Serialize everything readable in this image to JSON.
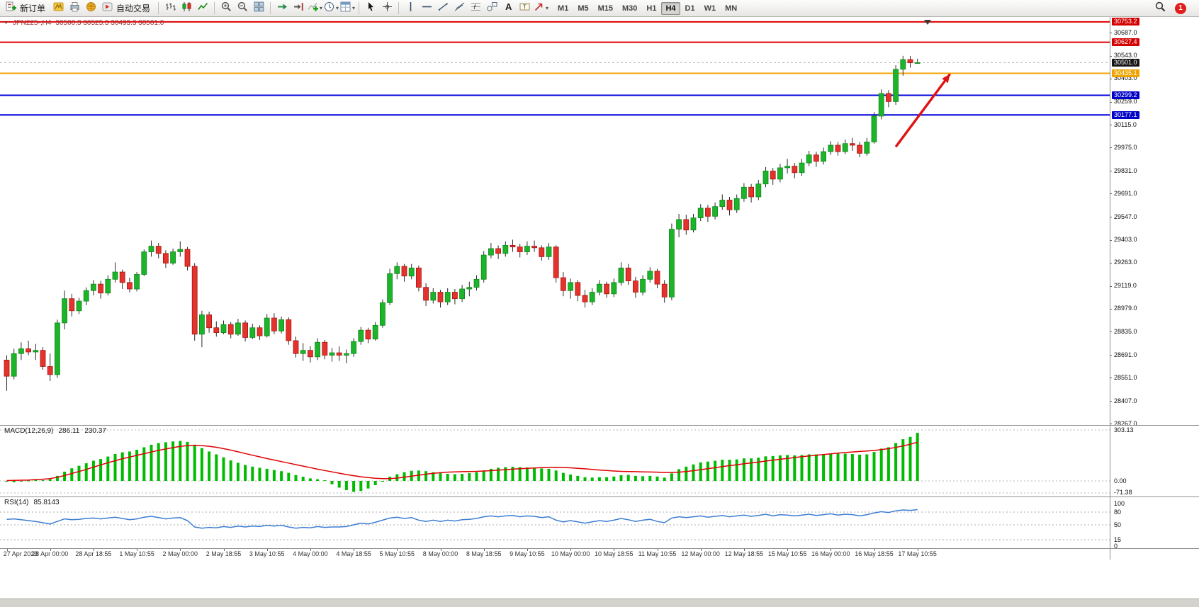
{
  "toolbar": {
    "items": [
      {
        "type": "button",
        "name": "new-order",
        "icon": "new-order-icon",
        "label": "新订单"
      },
      {
        "type": "icon",
        "name": "metaeditor",
        "icon": "metaeditor-icon"
      },
      {
        "type": "icon",
        "name": "print",
        "icon": "print-icon"
      },
      {
        "type": "icon",
        "name": "community",
        "icon": "community-icon"
      },
      {
        "type": "button",
        "name": "auto-trading",
        "icon": "autotrading-icon",
        "label": "自动交易"
      },
      {
        "type": "sep"
      },
      {
        "type": "icon",
        "name": "bar-chart",
        "icon": "bar-chart-icon"
      },
      {
        "type": "icon",
        "name": "candle-chart",
        "icon": "candle-chart-icon"
      },
      {
        "type": "icon",
        "name": "line-chart",
        "icon": "line-chart-icon"
      },
      {
        "type": "sep"
      },
      {
        "type": "icon",
        "name": "zoom-in",
        "icon": "zoom-in-icon"
      },
      {
        "type": "icon",
        "name": "zoom-out",
        "icon": "zoom-out-icon"
      },
      {
        "type": "icon",
        "name": "tile-windows",
        "icon": "tile-windows-icon"
      },
      {
        "type": "sep"
      },
      {
        "type": "icon",
        "name": "auto-scroll",
        "icon": "auto-scroll-icon"
      },
      {
        "type": "icon",
        "name": "chart-shift",
        "icon": "chart-shift-icon"
      },
      {
        "type": "icon",
        "name": "indicators",
        "icon": "indicators-icon",
        "dropdown": true
      },
      {
        "type": "icon",
        "name": "periods",
        "icon": "clock-icon",
        "dropdown": true
      },
      {
        "type": "icon",
        "name": "templates",
        "icon": "templates-icon",
        "dropdown": true
      },
      {
        "type": "sep"
      },
      {
        "type": "icon",
        "name": "cursor",
        "icon": "cursor-icon"
      },
      {
        "type": "icon",
        "name": "crosshair",
        "icon": "crosshair-icon"
      },
      {
        "type": "sep"
      },
      {
        "type": "icon",
        "name": "vertical-line",
        "icon": "vertical-line-icon"
      },
      {
        "type": "icon",
        "name": "horizontal-line",
        "icon": "horizontal-line-icon"
      },
      {
        "type": "icon",
        "name": "trend-line",
        "icon": "trend-line-icon"
      },
      {
        "type": "icon",
        "name": "channel",
        "icon": "channel-icon"
      },
      {
        "type": "icon",
        "name": "fibonacci",
        "icon": "fibonacci-icon"
      },
      {
        "type": "icon",
        "name": "shapes",
        "icon": "shapes-icon"
      },
      {
        "type": "icon",
        "name": "text",
        "icon": "text-icon"
      },
      {
        "type": "icon",
        "name": "text-label",
        "icon": "text-label-icon"
      },
      {
        "type": "icon",
        "name": "arrows",
        "icon": "arrow-icon",
        "dropdown": true
      }
    ],
    "timeframes": [
      "M1",
      "M5",
      "M15",
      "M30",
      "H1",
      "H4",
      "D1",
      "W1",
      "MN"
    ],
    "active_timeframe": "H4",
    "notification_count": "1"
  },
  "chart": {
    "symbol": "JPN225-,H4",
    "ohlc": "30500.3 30525.3 30493.3 30501.0",
    "bid": {
      "price": 30501.0,
      "label": "30501.0",
      "label_bg": "#161616"
    },
    "levels": [
      {
        "price": 30753.2,
        "label": "30753.2",
        "color": "#e00000",
        "label_bg": "#d40000"
      },
      {
        "price": 30627.4,
        "label": "30627.4",
        "color": "#e00000",
        "label_bg": "#d40000"
      },
      {
        "price": 30435.1,
        "label": "30435.1",
        "color": "#f2a200",
        "label_bg": "#eda400"
      },
      {
        "price": 30299.2,
        "label": "30299.2",
        "color": "#0000dc",
        "label_bg": "#0000c8"
      },
      {
        "price": 30177.1,
        "label": "30177.1",
        "color": "#0000dc",
        "label_bg": "#0000c8"
      }
    ],
    "price_axis": {
      "ticks": [
        "30687.0",
        "30543.0",
        "30403.0",
        "30259.0",
        "30115.0",
        "29975.0",
        "29831.0",
        "29691.0",
        "29547.0",
        "29403.0",
        "29263.0",
        "29119.0",
        "28979.0",
        "28835.0",
        "28691.0",
        "28551.0",
        "28407.0",
        "28267.0"
      ]
    },
    "colors": {
      "up": "#1db32a",
      "up_border": "#0d8a1b",
      "down": "#e4332c",
      "down_border": "#a81410",
      "wick": "#2b2b2b"
    },
    "annotations": [
      {
        "type": "arrow",
        "color": "#e01212",
        "from_index": 123,
        "from_price": 29980,
        "to_index": 130.5,
        "to_price": 30430
      }
    ],
    "time_labels": [
      "27 Apr 2023",
      "28 Apr 00:00",
      "28 Apr 18:55",
      "1 May 10:55",
      "2 May 00:00",
      "2 May 18:55",
      "3 May 10:55",
      "4 May 00:00",
      "4 May 18:55",
      "5 May 10:55",
      "8 May 00:00",
      "8 May 18:55",
      "9 May 10:55",
      "10 May 00:00",
      "10 May 18:55",
      "11 May 10:55",
      "12 May 00:00",
      "12 May 18:55",
      "15 May 10:55",
      "16 May 00:00",
      "16 May 18:55",
      "17 May 10:55"
    ],
    "candles": [
      [
        28660,
        28690,
        28470,
        28560
      ],
      [
        28560,
        28730,
        28540,
        28700
      ],
      [
        28700,
        28770,
        28660,
        28730
      ],
      [
        28730,
        28780,
        28690,
        28710
      ],
      [
        28710,
        28760,
        28660,
        28720
      ],
      [
        28720,
        28740,
        28600,
        28620
      ],
      [
        28620,
        28700,
        28530,
        28570
      ],
      [
        28570,
        28910,
        28550,
        28890
      ],
      [
        28890,
        29090,
        28850,
        29040
      ],
      [
        29040,
        29070,
        28930,
        28965
      ],
      [
        28965,
        29045,
        28945,
        29025
      ],
      [
        29025,
        29110,
        29000,
        29090
      ],
      [
        29090,
        29155,
        29060,
        29130
      ],
      [
        29130,
        29150,
        29040,
        29075
      ],
      [
        29075,
        29185,
        29060,
        29160
      ],
      [
        29160,
        29265,
        29140,
        29205
      ],
      [
        29205,
        29220,
        29100,
        29140
      ],
      [
        29140,
        29170,
        29080,
        29100
      ],
      [
        29100,
        29205,
        29085,
        29190
      ],
      [
        29190,
        29345,
        29180,
        29330
      ],
      [
        29330,
        29400,
        29300,
        29365
      ],
      [
        29365,
        29385,
        29290,
        29320
      ],
      [
        29320,
        29340,
        29230,
        29260
      ],
      [
        29260,
        29350,
        29250,
        29330
      ],
      [
        29330,
        29395,
        29300,
        29345
      ],
      [
        29345,
        29360,
        29215,
        29240
      ],
      [
        29240,
        29260,
        28780,
        28820
      ],
      [
        28820,
        28965,
        28740,
        28940
      ],
      [
        28940,
        28960,
        28830,
        28860
      ],
      [
        28860,
        28900,
        28805,
        28830
      ],
      [
        28830,
        28905,
        28820,
        28880
      ],
      [
        28880,
        28895,
        28795,
        28820
      ],
      [
        28820,
        28915,
        28810,
        28890
      ],
      [
        28890,
        28905,
        28775,
        28800
      ],
      [
        28800,
        28885,
        28790,
        28860
      ],
      [
        28860,
        28875,
        28785,
        28810
      ],
      [
        28810,
        28945,
        28800,
        28920
      ],
      [
        28920,
        28950,
        28820,
        28840
      ],
      [
        28840,
        28930,
        28825,
        28910
      ],
      [
        28910,
        28925,
        28755,
        28780
      ],
      [
        28780,
        28805,
        28675,
        28700
      ],
      [
        28700,
        28765,
        28655,
        28720
      ],
      [
        28720,
        28745,
        28645,
        28680
      ],
      [
        28680,
        28795,
        28660,
        28770
      ],
      [
        28770,
        28785,
        28665,
        28690
      ],
      [
        28690,
        28735,
        28650,
        28705
      ],
      [
        28705,
        28745,
        28655,
        28690
      ],
      [
        28690,
        28725,
        28640,
        28700
      ],
      [
        28700,
        28795,
        28680,
        28775
      ],
      [
        28775,
        28865,
        28755,
        28845
      ],
      [
        28845,
        28860,
        28765,
        28790
      ],
      [
        28790,
        28895,
        28780,
        28875
      ],
      [
        28875,
        29035,
        28860,
        29015
      ],
      [
        29015,
        29225,
        29000,
        29195
      ],
      [
        29195,
        29265,
        29160,
        29240
      ],
      [
        29240,
        29255,
        29145,
        29180
      ],
      [
        29180,
        29255,
        29160,
        29230
      ],
      [
        29230,
        29245,
        29085,
        29110
      ],
      [
        29110,
        29135,
        28995,
        29030
      ],
      [
        29030,
        29105,
        29010,
        29080
      ],
      [
        29080,
        29095,
        28985,
        29020
      ],
      [
        29020,
        29105,
        29000,
        29080
      ],
      [
        29080,
        29100,
        29005,
        29040
      ],
      [
        29040,
        29125,
        29020,
        29100
      ],
      [
        29100,
        29145,
        29055,
        29110
      ],
      [
        29110,
        29185,
        29090,
        29160
      ],
      [
        29160,
        29335,
        29140,
        29310
      ],
      [
        29310,
        29385,
        29290,
        29350
      ],
      [
        29350,
        29370,
        29285,
        29320
      ],
      [
        29320,
        29395,
        29300,
        29370
      ],
      [
        29370,
        29405,
        29330,
        29360
      ],
      [
        29360,
        29380,
        29295,
        29330
      ],
      [
        29330,
        29395,
        29310,
        29365
      ],
      [
        29365,
        29400,
        29330,
        29355
      ],
      [
        29355,
        29370,
        29275,
        29300
      ],
      [
        29300,
        29385,
        29280,
        29360
      ],
      [
        29360,
        29370,
        29140,
        29170
      ],
      [
        29170,
        29205,
        29055,
        29090
      ],
      [
        29090,
        29165,
        29040,
        29140
      ],
      [
        29140,
        29155,
        29025,
        29060
      ],
      [
        29060,
        29095,
        28985,
        29020
      ],
      [
        29020,
        29105,
        29000,
        29080
      ],
      [
        29080,
        29155,
        29060,
        29130
      ],
      [
        29130,
        29145,
        29045,
        29070
      ],
      [
        29070,
        29165,
        29050,
        29140
      ],
      [
        29140,
        29265,
        29120,
        29230
      ],
      [
        29230,
        29255,
        29125,
        29150
      ],
      [
        29150,
        29175,
        29045,
        29080
      ],
      [
        29080,
        29185,
        29060,
        29160
      ],
      [
        29160,
        29235,
        29140,
        29210
      ],
      [
        29210,
        29225,
        29105,
        29130
      ],
      [
        29130,
        29155,
        29015,
        29050
      ],
      [
        29050,
        29505,
        29030,
        29470
      ],
      [
        29470,
        29565,
        29420,
        29530
      ],
      [
        29530,
        29560,
        29435,
        29465
      ],
      [
        29465,
        29565,
        29450,
        29540
      ],
      [
        29540,
        29625,
        29520,
        29600
      ],
      [
        29600,
        29620,
        29515,
        29550
      ],
      [
        29550,
        29635,
        29530,
        29610
      ],
      [
        29610,
        29685,
        29590,
        29650
      ],
      [
        29650,
        29670,
        29555,
        29590
      ],
      [
        29590,
        29685,
        29570,
        29660
      ],
      [
        29660,
        29755,
        29640,
        29730
      ],
      [
        29730,
        29750,
        29635,
        29670
      ],
      [
        29670,
        29775,
        29650,
        29750
      ],
      [
        29750,
        29855,
        29730,
        29830
      ],
      [
        29830,
        29850,
        29745,
        29780
      ],
      [
        29780,
        29875,
        29760,
        29850
      ],
      [
        29850,
        29905,
        29815,
        29860
      ],
      [
        29860,
        29880,
        29785,
        29820
      ],
      [
        29820,
        29905,
        29800,
        29880
      ],
      [
        29880,
        29955,
        29860,
        29930
      ],
      [
        29930,
        29950,
        29855,
        29890
      ],
      [
        29890,
        29975,
        29870,
        29950
      ],
      [
        29950,
        30015,
        29930,
        29990
      ],
      [
        29990,
        30010,
        29925,
        29950
      ],
      [
        29950,
        30025,
        29935,
        30000
      ],
      [
        30000,
        30035,
        29955,
        29990
      ],
      [
        29990,
        30010,
        29915,
        29940
      ],
      [
        29940,
        30035,
        29925,
        30010
      ],
      [
        30010,
        30195,
        30000,
        30170
      ],
      [
        30170,
        30335,
        30150,
        30310
      ],
      [
        30310,
        30330,
        30225,
        30260
      ],
      [
        30260,
        30485,
        30240,
        30460
      ],
      [
        30460,
        30543,
        30420,
        30520
      ],
      [
        30520,
        30543,
        30470,
        30500
      ],
      [
        30500.3,
        30525.3,
        30493.3,
        30501.0
      ]
    ]
  },
  "macd": {
    "label": "MACD(12,26,9)",
    "value_main": "286.11",
    "value_signal": "230.37",
    "scale": [
      "303.13",
      "0.00",
      "-71.38"
    ],
    "colors": {
      "histogram": "#00bb00",
      "signal": "#e00000"
    },
    "histogram": [
      -5,
      -8,
      -4,
      2,
      6,
      4,
      10,
      30,
      55,
      75,
      90,
      105,
      120,
      130,
      145,
      160,
      170,
      175,
      185,
      200,
      215,
      225,
      230,
      235,
      238,
      232,
      215,
      195,
      175,
      158,
      140,
      122,
      108,
      95,
      85,
      78,
      72,
      65,
      58,
      48,
      35,
      25,
      15,
      10,
      4,
      -20,
      -40,
      -55,
      -65,
      -60,
      -45,
      -25,
      -5,
      25,
      40,
      52,
      60,
      62,
      58,
      52,
      46,
      42,
      40,
      42,
      46,
      52,
      62,
      72,
      78,
      82,
      84,
      82,
      80,
      78,
      74,
      72,
      62,
      48,
      38,
      30,
      22,
      20,
      22,
      22,
      26,
      34,
      36,
      30,
      28,
      30,
      26,
      20,
      45,
      70,
      85,
      98,
      110,
      115,
      120,
      126,
      126,
      128,
      134,
      134,
      138,
      146,
      148,
      152,
      154,
      152,
      154,
      158,
      158,
      160,
      164,
      162,
      162,
      160,
      156,
      158,
      172,
      192,
      200,
      225,
      248,
      262,
      286
    ],
    "signal": [
      2,
      3,
      4,
      5,
      8,
      10,
      14,
      22,
      32,
      44,
      56,
      68,
      82,
      95,
      108,
      120,
      132,
      142,
      152,
      162,
      172,
      182,
      190,
      198,
      205,
      210,
      212,
      210,
      206,
      200,
      192,
      183,
      173,
      163,
      153,
      143,
      133,
      124,
      115,
      106,
      97,
      88,
      79,
      70,
      62,
      54,
      46,
      38,
      31,
      25,
      20,
      16,
      14,
      14,
      17,
      22,
      28,
      34,
      40,
      45,
      49,
      52,
      54,
      55,
      56,
      57,
      59,
      61,
      64,
      67,
      70,
      73,
      75,
      77,
      79,
      80,
      81,
      80,
      78,
      75,
      72,
      68,
      65,
      62,
      59,
      57,
      56,
      55,
      54,
      53,
      52,
      50,
      50,
      52,
      56,
      61,
      67,
      73,
      79,
      85,
      91,
      96,
      102,
      107,
      112,
      118,
      123,
      129,
      134,
      139,
      144,
      148,
      153,
      157,
      161,
      165,
      169,
      172,
      175,
      178,
      181,
      186,
      192,
      199,
      208,
      218,
      230
    ]
  },
  "rsi": {
    "label": "RSI(14)",
    "value": "85.8143",
    "scale": [
      "100",
      "80",
      "50",
      "15",
      "0"
    ],
    "levels": [
      80,
      50,
      15
    ],
    "color": "#3c7dd2",
    "values": [
      63,
      64,
      62,
      60,
      58,
      55,
      52,
      58,
      64,
      62,
      63,
      65,
      66,
      64,
      66,
      68,
      65,
      62,
      64,
      68,
      70,
      67,
      64,
      66,
      67,
      60,
      45,
      42,
      44,
      43,
      46,
      44,
      47,
      45,
      47,
      46,
      49,
      47,
      49,
      45,
      42,
      44,
      43,
      46,
      44,
      45,
      45,
      46,
      50,
      54,
      52,
      56,
      61,
      66,
      68,
      65,
      67,
      61,
      58,
      61,
      58,
      61,
      59,
      62,
      63,
      65,
      69,
      71,
      69,
      71,
      72,
      69,
      71,
      70,
      67,
      69,
      61,
      57,
      60,
      57,
      54,
      57,
      60,
      58,
      61,
      65,
      62,
      58,
      61,
      63,
      58,
      55,
      66,
      69,
      67,
      69,
      71,
      68,
      70,
      72,
      69,
      71,
      73,
      70,
      72,
      75,
      71,
      74,
      73,
      71,
      73,
      75,
      72,
      74,
      76,
      73,
      75,
      74,
      71,
      74,
      78,
      81,
      79,
      83,
      85,
      84,
      85.81
    ]
  }
}
